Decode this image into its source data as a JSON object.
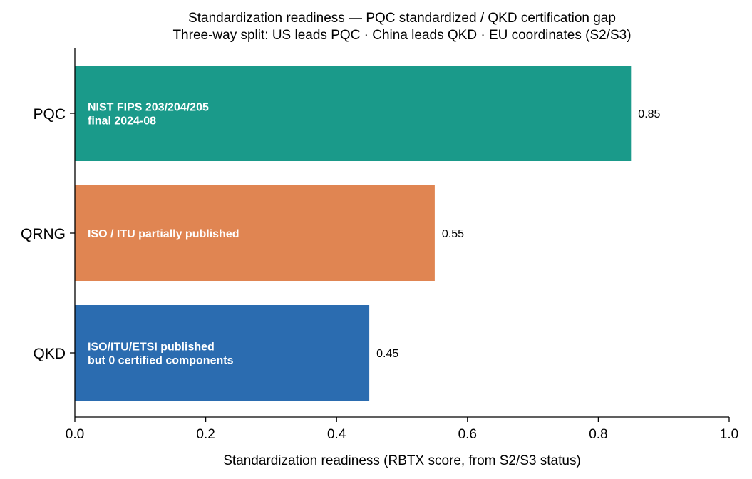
{
  "chart_data": {
    "type": "bar",
    "orientation": "horizontal",
    "title": "Standardization readiness — PQC standardized / QKD certification gap",
    "subtitle": "Three-way split: US leads PQC · China leads QKD · EU coordinates  (S2/S3)",
    "xlabel": "Standardization readiness (RBTX score, from S2/S3 status)",
    "ylabel": "",
    "xlim": [
      0,
      1.0
    ],
    "xticks": [
      "0.0",
      "0.2",
      "0.4",
      "0.6",
      "0.8",
      "1.0"
    ],
    "grid": false,
    "categories": [
      "PQC",
      "QRNG",
      "QKD"
    ],
    "values": [
      0.85,
      0.55,
      0.45
    ],
    "value_labels": [
      "0.85",
      "0.55",
      "0.45"
    ],
    "annotations": [
      [
        "NIST FIPS 203/204/205",
        "final 2024-08"
      ],
      [
        "ISO / ITU partially published"
      ],
      [
        "ISO/ITU/ETSI published",
        "but 0 certified components"
      ]
    ],
    "colors": [
      "#1a9a8a",
      "#e08552",
      "#2b6cb0"
    ]
  }
}
